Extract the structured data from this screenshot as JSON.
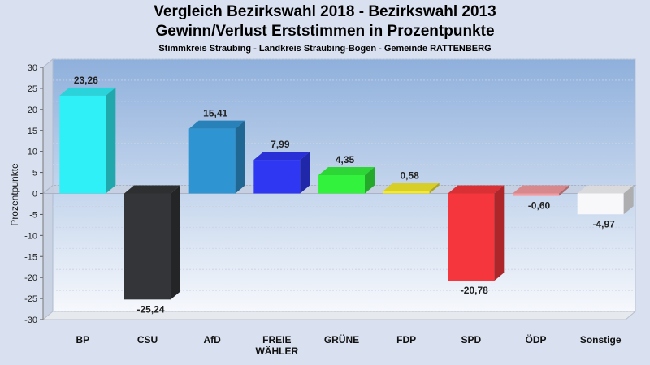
{
  "chart_data": {
    "type": "bar",
    "title": "Vergleich Bezirkswahl 2018 - Bezirkswahl 2013",
    "subtitle": "Gewinn/Verlust Erststimmen in Prozentpunkte",
    "subtitle2": "Stimmkreis Straubing - Landkreis Straubing-Bogen - Gemeinde RATTENBERG",
    "ylabel": "Prozentpunkte",
    "ylim": [
      -30,
      30
    ],
    "ytick_step": 5,
    "grid": true,
    "categories": [
      [
        "BP"
      ],
      [
        "CSU"
      ],
      [
        "AfD"
      ],
      [
        "FREIE",
        "WÄHLER"
      ],
      [
        "GRÜNE"
      ],
      [
        "FDP"
      ],
      [
        "SPD"
      ],
      [
        "ÖDP"
      ],
      [
        "Sonstige"
      ]
    ],
    "values": [
      23.26,
      -25.24,
      15.41,
      7.99,
      4.35,
      0.58,
      -20.78,
      -0.6,
      -4.97
    ],
    "value_labels": [
      "23,26",
      "-25,24",
      "15,41",
      "7,99",
      "4,35",
      "0,58",
      "-20,78",
      "-0,60",
      "-4,97"
    ],
    "colors": [
      "#2ff0f7",
      "#333538",
      "#2e94d2",
      "#2f37f2",
      "#33f23d",
      "#f5ea2e",
      "#f5363c",
      "#f49aa0",
      "#f8f8fb"
    ]
  }
}
